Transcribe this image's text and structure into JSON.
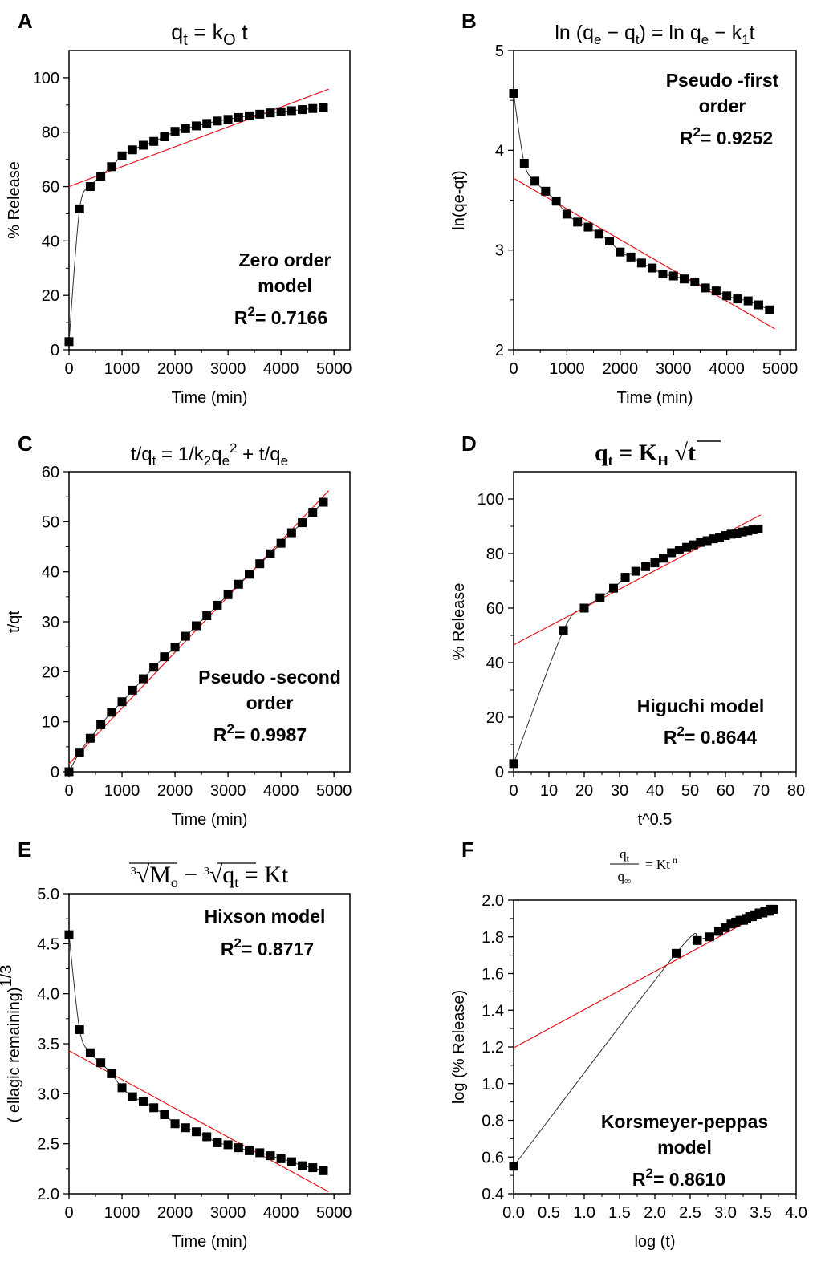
{
  "figure": {
    "panels": [
      {
        "letter": "A"
      },
      {
        "letter": "B"
      },
      {
        "letter": "C"
      },
      {
        "letter": "D"
      },
      {
        "letter": "E"
      },
      {
        "letter": "F"
      }
    ]
  },
  "chart_data": [
    {
      "panel": "A",
      "type": "scatter",
      "title": "qt = kO t",
      "xlabel": "Time (min)",
      "ylabel": "% Release",
      "xlim": [
        0,
        5300
      ],
      "ylim": [
        0,
        110
      ],
      "xticks": [
        0,
        1000,
        2000,
        3000,
        4000,
        5000
      ],
      "yticks": [
        0,
        20,
        40,
        60,
        80,
        100
      ],
      "annotation": [
        "Zero order",
        "model"
      ],
      "r2": "0.7166",
      "series": [
        {
          "x": [
            0,
            200,
            400,
            600,
            800,
            1000,
            1200,
            1400,
            1600,
            1800,
            2000,
            2200,
            2400,
            2600,
            2800,
            3000,
            3200,
            3400,
            3600,
            3800,
            4000,
            4200,
            4400,
            4600,
            4800
          ],
          "values": [
            3,
            51.8,
            60,
            63.8,
            67.3,
            71.3,
            73.5,
            75.2,
            76.6,
            78.3,
            80.3,
            81.3,
            82.3,
            83.2,
            84.1,
            84.7,
            85.4,
            86,
            86.6,
            87.1,
            87.5,
            87.9,
            88.3,
            88.7,
            89
          ]
        }
      ],
      "fit_line": {
        "x": [
          0,
          4900
        ],
        "y": [
          60,
          95.8
        ]
      },
      "grid": false
    },
    {
      "panel": "B",
      "type": "scatter",
      "title": "ln (qe − qt) = ln qe − k1t",
      "xlabel": "Time (min)",
      "ylabel": "ln(qe-qt)",
      "xlim": [
        0,
        5300
      ],
      "ylim": [
        2,
        5
      ],
      "xticks": [
        0,
        1000,
        2000,
        3000,
        4000,
        5000
      ],
      "yticks": [
        2,
        3,
        4,
        5
      ],
      "annotation": [
        "Pseudo -first",
        "order"
      ],
      "r2": "0.9252",
      "series": [
        {
          "x": [
            0,
            200,
            400,
            600,
            800,
            1000,
            1200,
            1400,
            1600,
            1800,
            2000,
            2200,
            2400,
            2600,
            2800,
            3000,
            3200,
            3400,
            3600,
            3800,
            4000,
            4200,
            4400,
            4600,
            4800
          ],
          "values": [
            4.57,
            3.87,
            3.69,
            3.59,
            3.49,
            3.36,
            3.28,
            3.23,
            3.16,
            3.09,
            2.98,
            2.93,
            2.87,
            2.82,
            2.76,
            2.74,
            2.71,
            2.68,
            2.62,
            2.59,
            2.54,
            2.51,
            2.49,
            2.45,
            2.4
          ]
        }
      ],
      "fit_line": {
        "x": [
          0,
          4900
        ],
        "y": [
          3.72,
          2.21
        ]
      },
      "grid": false
    },
    {
      "panel": "C",
      "type": "scatter",
      "title": "t/qt = 1/k2qe2 + t/qe",
      "xlabel": "Time (min)",
      "ylabel": "t/qt",
      "xlim": [
        0,
        5300
      ],
      "ylim": [
        0,
        60
      ],
      "xticks": [
        0,
        1000,
        2000,
        3000,
        4000,
        5000
      ],
      "yticks": [
        0,
        10,
        20,
        30,
        40,
        50,
        60
      ],
      "annotation": [
        "Pseudo -second",
        "order"
      ],
      "r2": "0.9987",
      "series": [
        {
          "x": [
            0,
            200,
            400,
            600,
            800,
            1000,
            1200,
            1400,
            1600,
            1800,
            2000,
            2200,
            2400,
            2600,
            2800,
            3000,
            3200,
            3400,
            3600,
            3800,
            4000,
            4200,
            4400,
            4600,
            4800
          ],
          "values": [
            0,
            3.9,
            6.7,
            9.4,
            11.9,
            14,
            16.3,
            18.6,
            20.9,
            23,
            24.9,
            27.1,
            29.2,
            31.2,
            33.3,
            35.4,
            37.5,
            39.5,
            41.6,
            43.6,
            45.7,
            47.8,
            49.8,
            51.9,
            53.9
          ]
        }
      ],
      "fit_line": {
        "x": [
          0,
          4900
        ],
        "y": [
          1.6,
          56.2
        ]
      },
      "grid": false
    },
    {
      "panel": "D",
      "type": "scatter",
      "title": "qt = KH √t",
      "xlabel": "t^0.5",
      "ylabel": "% Release",
      "xlim": [
        0,
        80
      ],
      "ylim": [
        0,
        110
      ],
      "xticks": [
        0,
        10,
        20,
        30,
        40,
        50,
        60,
        70,
        80
      ],
      "yticks": [
        0,
        20,
        40,
        60,
        80,
        100
      ],
      "annotation": [
        "Higuchi model"
      ],
      "r2": "0.8644",
      "series": [
        {
          "x": [
            0,
            14.1,
            20,
            24.5,
            28.3,
            31.6,
            34.6,
            37.4,
            40,
            42.4,
            44.7,
            46.9,
            49,
            51,
            52.9,
            54.8,
            56.6,
            58.3,
            60,
            61.6,
            63.2,
            64.8,
            66.3,
            67.8,
            69.3
          ],
          "values": [
            3,
            51.8,
            60,
            63.8,
            67.3,
            71.3,
            73.5,
            75.2,
            76.6,
            78.3,
            80.3,
            81.3,
            82.3,
            83.2,
            84.1,
            84.7,
            85.4,
            86,
            86.6,
            87.1,
            87.5,
            87.9,
            88.3,
            88.7,
            89
          ]
        }
      ],
      "fit_line": {
        "x": [
          0,
          70
        ],
        "y": [
          46.5,
          94.2
        ]
      },
      "grid": false
    },
    {
      "panel": "E",
      "type": "scatter",
      "title": "∛Mo − ∛qt = Kt",
      "xlabel": "Time (min)",
      "ylabel": "( ellagic remaining)1/3",
      "xlim": [
        0,
        5300
      ],
      "ylim": [
        2.0,
        5.0
      ],
      "xticks": [
        0,
        1000,
        2000,
        3000,
        4000,
        5000
      ],
      "yticks": [
        "2.0",
        "2.5",
        "3.0",
        "3.5",
        "4.0",
        "4.5",
        "5.0"
      ],
      "annotation": [
        "Hixson model"
      ],
      "r2": "0.8717",
      "series": [
        {
          "x": [
            0,
            200,
            400,
            600,
            800,
            1000,
            1200,
            1400,
            1600,
            1800,
            2000,
            2200,
            2400,
            2600,
            2800,
            3000,
            3200,
            3400,
            3600,
            3800,
            4000,
            4200,
            4400,
            4600,
            4800
          ],
          "values": [
            4.59,
            3.64,
            3.41,
            3.31,
            3.2,
            3.06,
            2.97,
            2.92,
            2.86,
            2.79,
            2.7,
            2.66,
            2.62,
            2.57,
            2.51,
            2.49,
            2.46,
            2.43,
            2.41,
            2.38,
            2.35,
            2.32,
            2.28,
            2.26,
            2.23
          ]
        }
      ],
      "fit_line": {
        "x": [
          0,
          4900
        ],
        "y": [
          3.43,
          2.02
        ]
      },
      "grid": false
    },
    {
      "panel": "F",
      "type": "scatter",
      "title": "qt / q∞ = Kt n",
      "xlabel": "log (t)",
      "ylabel": "log (% Release)",
      "xlim": [
        0,
        4.0
      ],
      "ylim": [
        0.4,
        2.0
      ],
      "xticks": [
        "0.0",
        "0.5",
        "1.0",
        "1.5",
        "2.0",
        "2.5",
        "3.0",
        "3.5",
        "4.0"
      ],
      "yticks": [
        "0.4",
        "0.6",
        "0.8",
        "1.0",
        "1.2",
        "1.4",
        "1.6",
        "1.8",
        "2.0"
      ],
      "annotation": [
        "Korsmeyer-peppas",
        "model"
      ],
      "r2": "0.8610",
      "series": [
        {
          "x": [
            0,
            2.301,
            2.602,
            2.778,
            2.903,
            3.0,
            3.079,
            3.146,
            3.204,
            3.255,
            3.301,
            3.342,
            3.38,
            3.415,
            3.447,
            3.477,
            3.505,
            3.531,
            3.556,
            3.58,
            3.602,
            3.623,
            3.643,
            3.663,
            3.681
          ],
          "values": [
            0.55,
            1.71,
            1.78,
            1.8,
            1.83,
            1.85,
            1.87,
            1.88,
            1.89,
            1.89,
            1.9,
            1.91,
            1.91,
            1.92,
            1.92,
            1.93,
            1.93,
            1.93,
            1.94,
            1.94,
            1.94,
            1.94,
            1.95,
            1.95,
            1.95
          ]
        }
      ],
      "fit_line": {
        "x": [
          0,
          3.7
        ],
        "y": [
          1.195,
          1.965
        ]
      },
      "grid": false
    }
  ]
}
